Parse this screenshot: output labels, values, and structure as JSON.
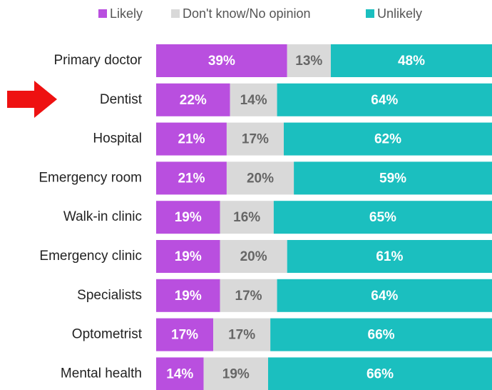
{
  "chart_data": {
    "type": "stacked-bar-horizontal",
    "categories": [
      "Primary doctor",
      "Dentist",
      "Hospital",
      "Emergency room",
      "Walk-in clinic",
      "Emergency clinic",
      "Specialists",
      "Optometrist",
      "Mental health"
    ],
    "series": [
      {
        "name": "Likely",
        "color": "#b94fdf",
        "values": [
          39,
          22,
          21,
          21,
          19,
          19,
          19,
          17,
          14
        ],
        "value_labels": [
          "39%",
          "22%",
          "21%",
          "21%",
          "19%",
          "19%",
          "19%",
          "17%",
          "14%"
        ]
      },
      {
        "name": "Don't know/No opinion",
        "color": "#d9d9d9",
        "values": [
          13,
          14,
          17,
          20,
          16,
          20,
          17,
          17,
          19
        ],
        "value_labels": [
          "13%",
          "14%",
          "17%",
          "20%",
          "16%",
          "20%",
          "17%",
          "17%",
          "19%"
        ]
      },
      {
        "name": "Unlikely",
        "color": "#1bbfbf",
        "values": [
          48,
          64,
          62,
          59,
          65,
          61,
          64,
          66,
          66
        ],
        "value_labels": [
          "48%",
          "64%",
          "62%",
          "59%",
          "65%",
          "61%",
          "64%",
          "66%",
          "66%"
        ]
      }
    ],
    "legend": "top"
  }
}
